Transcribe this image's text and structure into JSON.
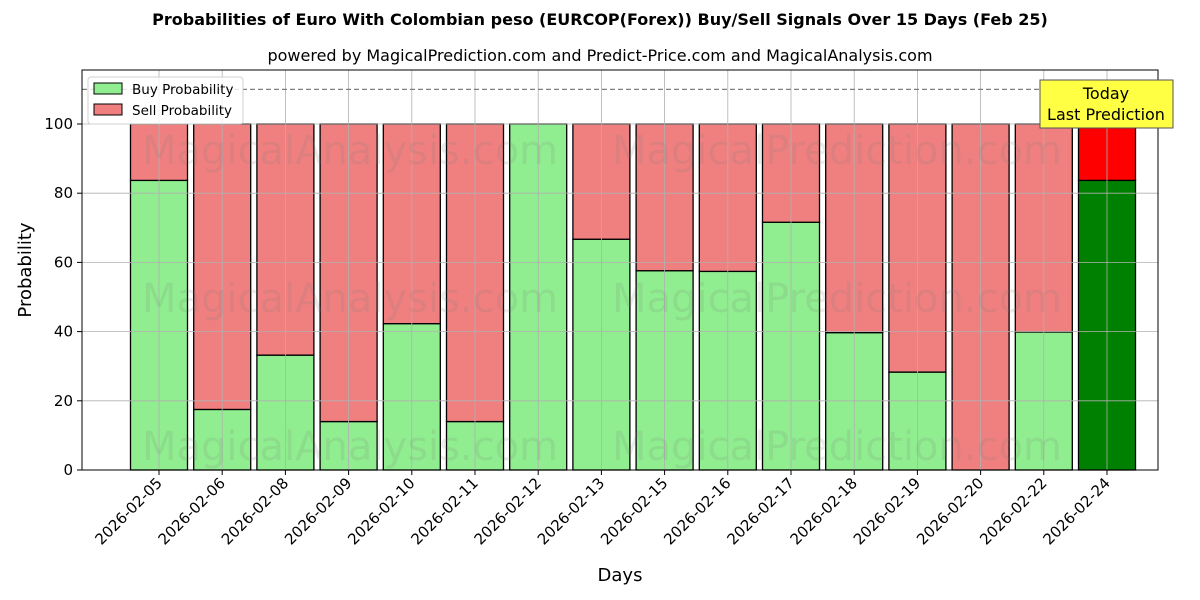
{
  "title": "Probabilities of Euro With Colombian peso (EURCOP(Forex)) Buy/Sell Signals Over 15 Days (Feb 25)",
  "subtitle": "powered by MagicalPrediction.com and Predict-Price.com and MagicalAnalysis.com",
  "annotation": {
    "line1": "Today",
    "line2": "Last Prediction"
  },
  "watermarks": [
    "MagicalAnalysis.com",
    "MagicalPrediction.com"
  ],
  "colors": {
    "buy": "#90ee90",
    "sell": "#f08080",
    "today_buy": "#008000",
    "today_sell": "#ff0000",
    "annotation_bg": "#ffff44"
  },
  "chart_data": {
    "type": "bar",
    "stacked": true,
    "title": "Probabilities of Euro With Colombian peso (EURCOP(Forex)) Buy/Sell Signals Over 15 Days (Feb 25)",
    "subtitle": "powered by MagicalPrediction.com and Predict-Price.com and MagicalAnalysis.com",
    "xlabel": "Days",
    "ylabel": "Probability",
    "ylim": [
      0,
      115
    ],
    "yticks": [
      0,
      20,
      40,
      60,
      80,
      100
    ],
    "reference_line": 110,
    "grid": true,
    "legend_position": "upper left",
    "categories": [
      "2026-02-05",
      "2026-02-06",
      "2026-02-08",
      "2026-02-09",
      "2026-02-10",
      "2026-02-11",
      "2026-02-12",
      "2026-02-13",
      "2026-02-15",
      "2026-02-16",
      "2026-02-17",
      "2026-02-18",
      "2026-02-19",
      "2026-02-20",
      "2026-02-22",
      "2026-02-24"
    ],
    "series": [
      {
        "name": "Buy Probability",
        "values": [
          83.7,
          17.5,
          33.2,
          14.0,
          42.3,
          14.0,
          100,
          66.7,
          57.6,
          57.4,
          71.6,
          39.7,
          28.3,
          0,
          39.9,
          83.7
        ]
      },
      {
        "name": "Sell Probability",
        "values": [
          16.3,
          82.5,
          66.8,
          86.0,
          57.7,
          86.0,
          0,
          33.3,
          42.4,
          42.6,
          28.4,
          60.3,
          71.7,
          100,
          60.1,
          16.3
        ]
      }
    ]
  }
}
